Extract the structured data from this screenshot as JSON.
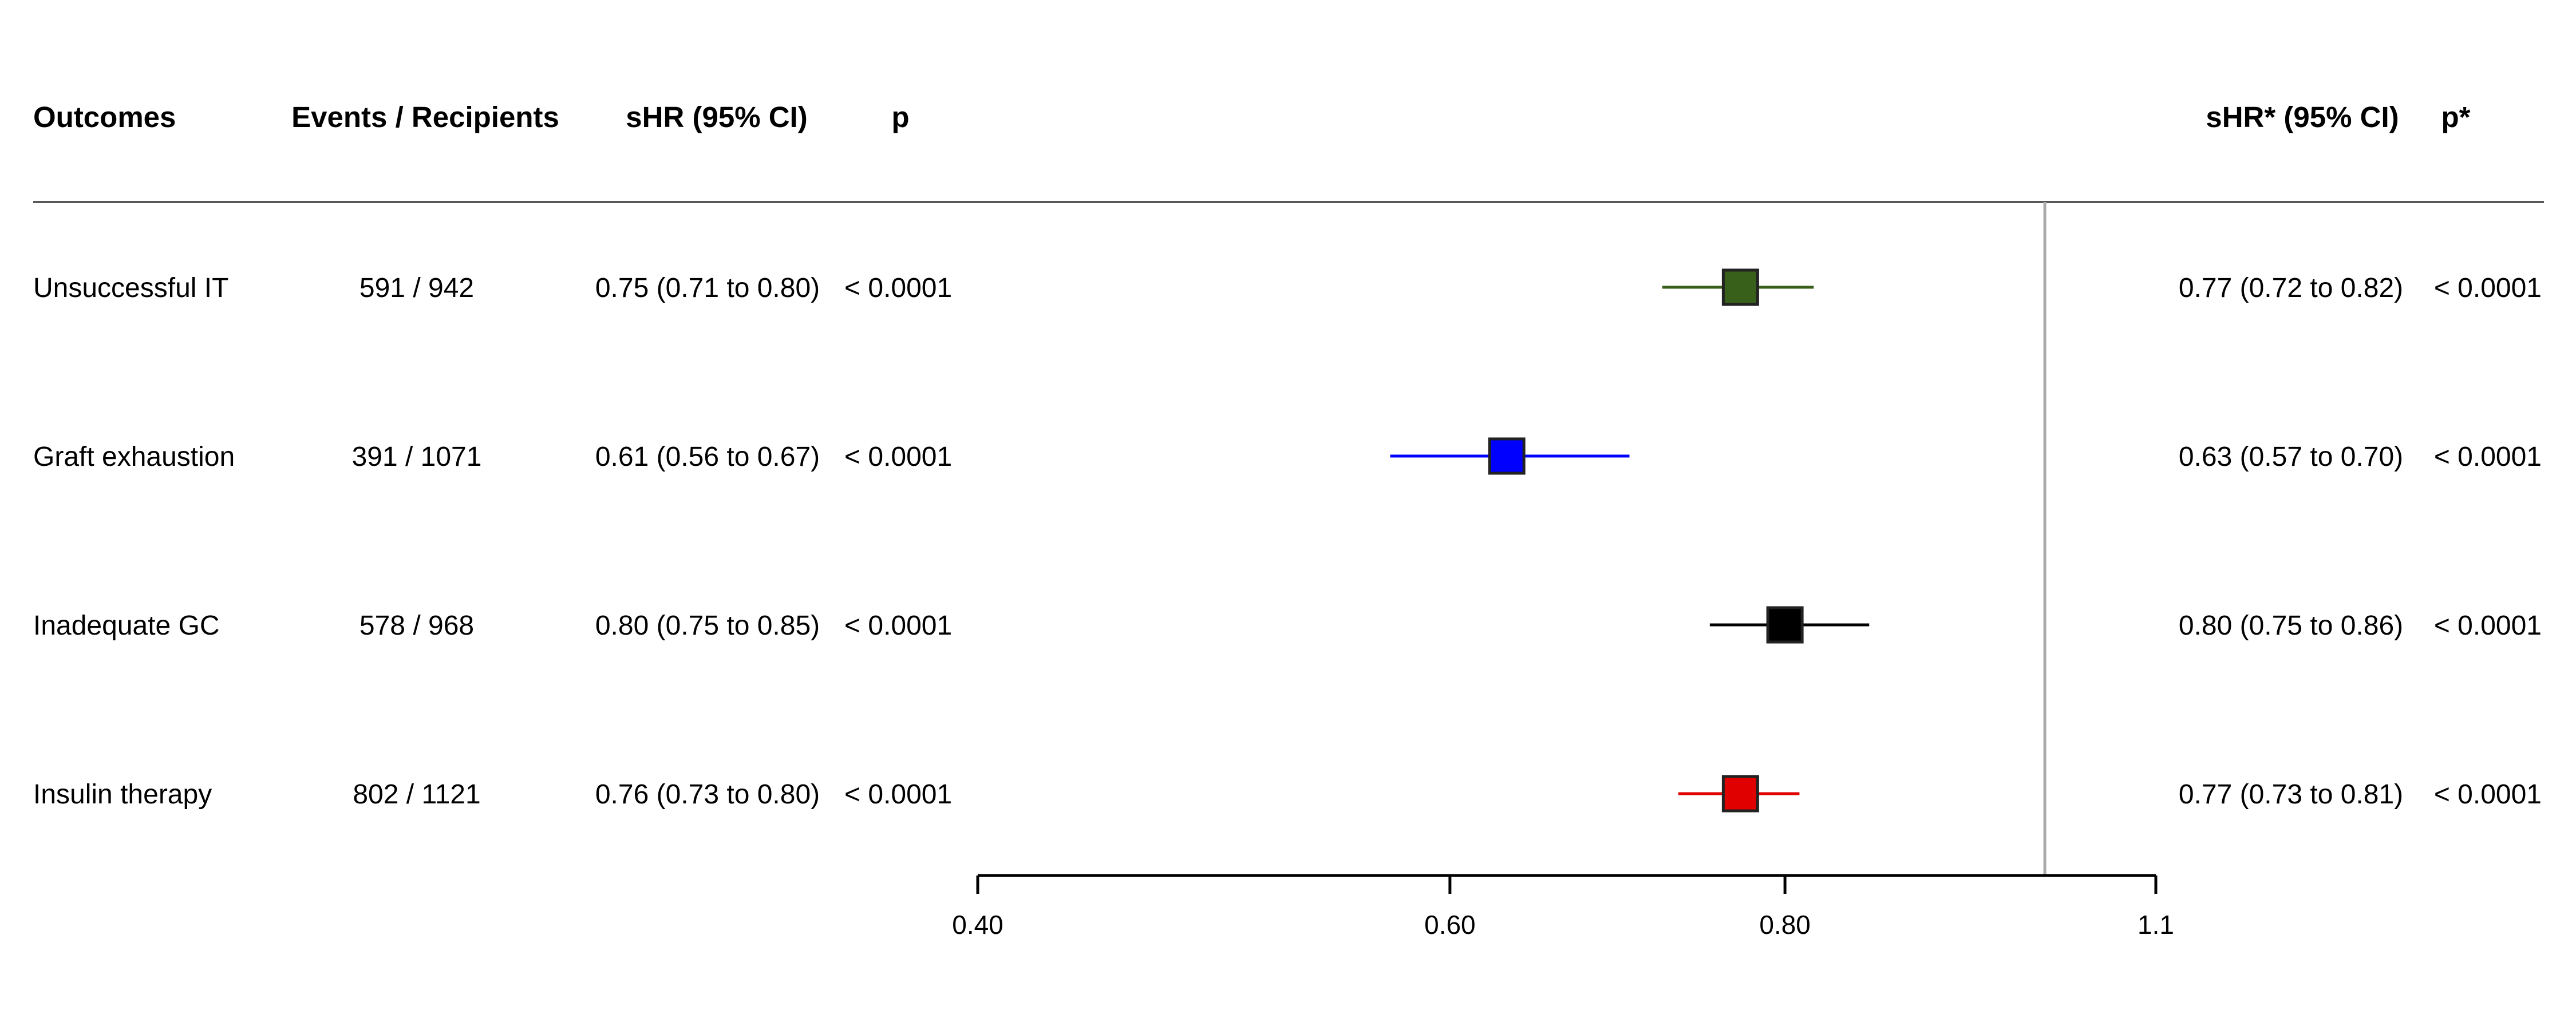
{
  "chart_data": {
    "type": "forest",
    "columns": {
      "outcomes": "Outcomes",
      "events": "Events / Recipients",
      "shr": "sHR (95% CI)",
      "p": "p",
      "shr_adj": "sHR* (95% CI)",
      "p_adj": "p*"
    },
    "rows": [
      {
        "label": "Unsuccessful IT",
        "events": "591 / 942",
        "shr_text": "0.75 (0.71 to 0.80)",
        "p": "< 0.0001",
        "shr_adj_text": "0.77 (0.72 to 0.82)",
        "p_adj": "< 0.0001",
        "estimate": 0.77,
        "lower": 0.72,
        "upper": 0.82,
        "color": "#38601a"
      },
      {
        "label": "Graft exhaustion",
        "events": "391 / 1071",
        "shr_text": "0.61 (0.56 to 0.67)",
        "p": "< 0.0001",
        "shr_adj_text": "0.63 (0.57 to 0.70)",
        "p_adj": "< 0.0001",
        "estimate": 0.63,
        "lower": 0.57,
        "upper": 0.7,
        "color": "#0000ff"
      },
      {
        "label": "Inadequate GC",
        "events": "578 / 968",
        "shr_text": "0.80 (0.75 to 0.85)",
        "p": "< 0.0001",
        "shr_adj_text": "0.80 (0.75 to 0.86)",
        "p_adj": "< 0.0001",
        "estimate": 0.8,
        "lower": 0.75,
        "upper": 0.86,
        "color": "#000000"
      },
      {
        "label": "Insulin therapy",
        "events": "802 / 1121",
        "shr_text": "0.76 (0.73 to 0.80)",
        "p": "< 0.0001",
        "shr_adj_text": "0.77 (0.73 to 0.81)",
        "p_adj": "< 0.0001",
        "estimate": 0.77,
        "lower": 0.73,
        "upper": 0.81,
        "color": "#e00000"
      }
    ],
    "x_axis": {
      "scale": "log",
      "ticks": [
        0.4,
        0.6,
        0.8,
        1.1
      ],
      "tick_labels": [
        "0.40",
        "0.60",
        "0.80",
        "1.1"
      ],
      "range": [
        0.4,
        1.1
      ]
    },
    "reference_line": 1.0,
    "reference_line_color": "#aaaaaa"
  }
}
